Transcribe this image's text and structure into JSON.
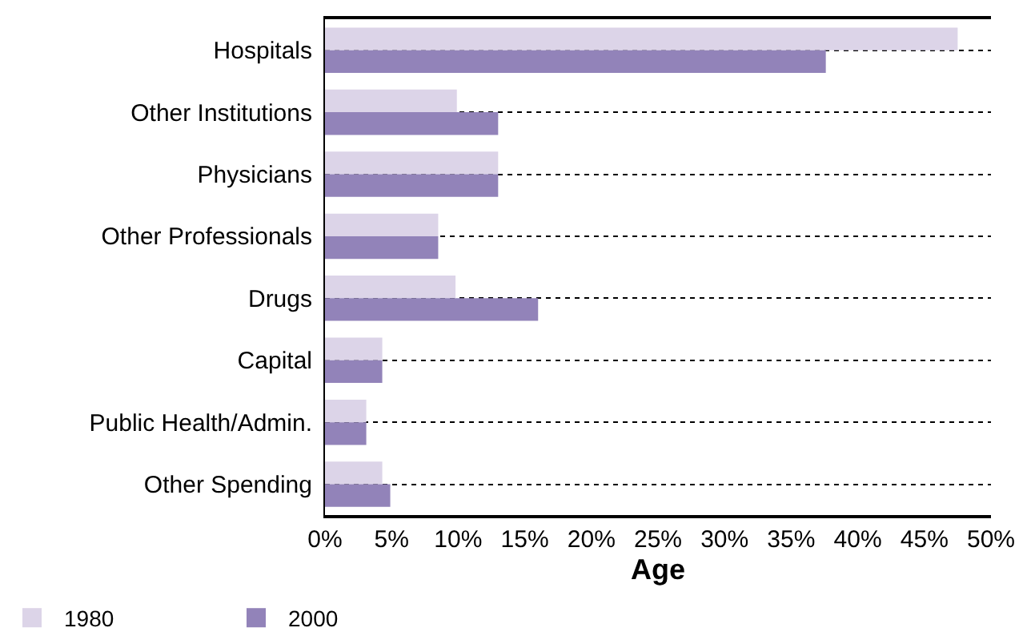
{
  "chart_data": {
    "type": "bar",
    "orientation": "horizontal",
    "xlabel": "Age",
    "categories": [
      "Hospitals",
      "Other Institutions",
      "Physicians",
      "Other Professionals",
      "Drugs",
      "Capital",
      "Public Health/Admin.",
      "Other Spending"
    ],
    "series": [
      {
        "name": "1980",
        "color": "#dcd4e8",
        "values": [
          47.5,
          9.9,
          13.0,
          8.5,
          9.8,
          4.3,
          3.1,
          4.3
        ]
      },
      {
        "name": "2000",
        "color": "#9283b9",
        "values": [
          37.6,
          13.0,
          13.0,
          8.5,
          16.0,
          4.3,
          3.1,
          4.9
        ]
      }
    ],
    "xlim": [
      0,
      50
    ],
    "xticks": [
      {
        "value": 0,
        "label": "0%"
      },
      {
        "value": 5,
        "label": "5%"
      },
      {
        "value": 10,
        "label": "10%"
      },
      {
        "value": 15,
        "label": "15%"
      },
      {
        "value": 20,
        "label": "20%"
      },
      {
        "value": 25,
        "label": "25%"
      },
      {
        "value": 30,
        "label": "30%"
      },
      {
        "value": 35,
        "label": "35%"
      },
      {
        "value": 40,
        "label": "40%"
      },
      {
        "value": 45,
        "label": "45%"
      },
      {
        "value": 50,
        "label": "50%"
      }
    ],
    "grid": "y",
    "legend": "bottom left"
  }
}
